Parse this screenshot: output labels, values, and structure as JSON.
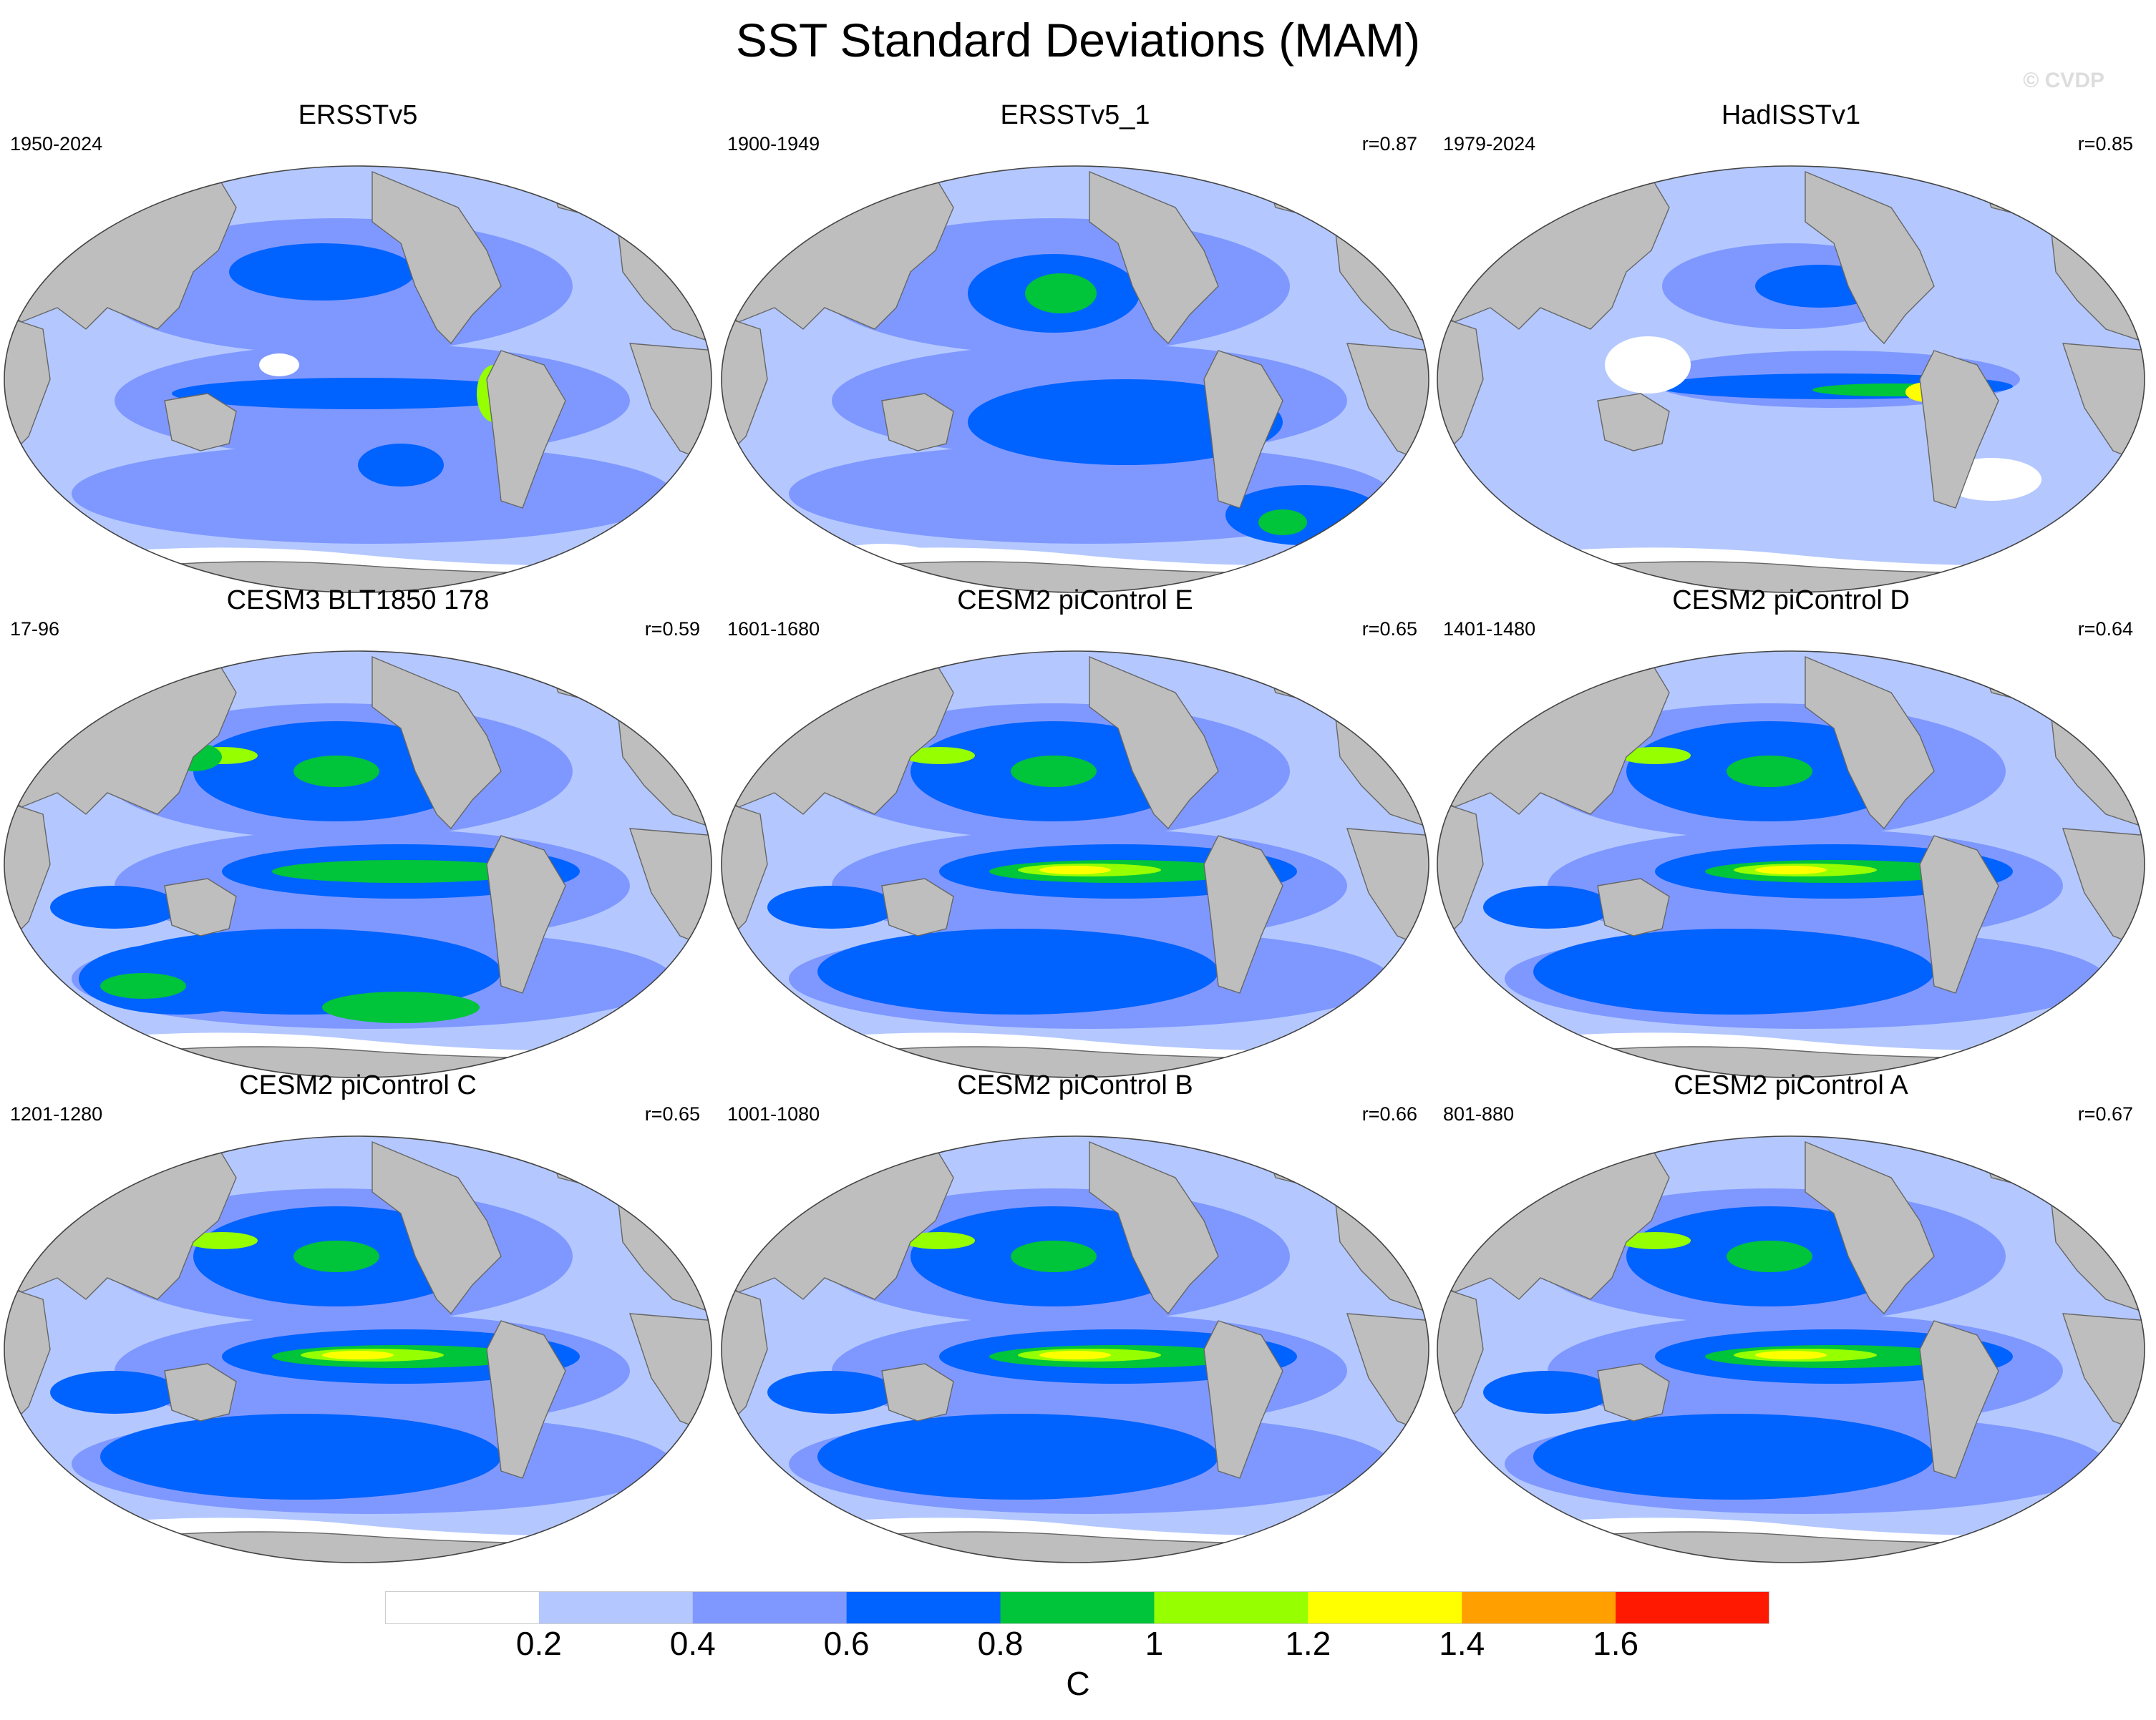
{
  "title": "SST Standard Deviations (MAM)",
  "watermark": "© CVDP",
  "colors": {
    "land": "#bebebe",
    "coast": "#555555",
    "ocean_bins": [
      "#ffffff",
      "#b4c8ff",
      "#7f98ff",
      "#0062ff",
      "#00c43a",
      "#96ff00",
      "#ffff00",
      "#ff9f00",
      "#ff1900"
    ]
  },
  "chart_data": [
    {
      "type": "heatmap",
      "title": "ERSSTv5",
      "period": "1950-2024",
      "r": "",
      "projection": "robinson"
    },
    {
      "type": "heatmap",
      "title": "ERSSTv5_1",
      "period": "1900-1949",
      "r": "r=0.87",
      "projection": "robinson"
    },
    {
      "type": "heatmap",
      "title": "HadISSTv1",
      "period": "1979-2024",
      "r": "r=0.85",
      "projection": "robinson"
    },
    {
      "type": "heatmap",
      "title": "CESM3 BLT1850 178",
      "period": "17-96",
      "r": "r=0.59",
      "projection": "robinson"
    },
    {
      "type": "heatmap",
      "title": "CESM2 piControl E",
      "period": "1601-1680",
      "r": "r=0.65",
      "projection": "robinson"
    },
    {
      "type": "heatmap",
      "title": "CESM2 piControl D",
      "period": "1401-1480",
      "r": "r=0.64",
      "projection": "robinson"
    },
    {
      "type": "heatmap",
      "title": "CESM2 piControl C",
      "period": "1201-1280",
      "r": "r=0.65",
      "projection": "robinson"
    },
    {
      "type": "heatmap",
      "title": "CESM2 piControl B",
      "period": "1001-1080",
      "r": "r=0.66",
      "projection": "robinson"
    },
    {
      "type": "heatmap",
      "title": "CESM2 piControl A",
      "period": "801-880",
      "r": "r=0.67",
      "projection": "robinson"
    }
  ],
  "colorbar": {
    "levels": [
      0.2,
      0.4,
      0.6,
      0.8,
      1.0,
      1.2,
      1.4,
      1.6
    ],
    "tick_labels": [
      "0.2",
      "0.4",
      "0.6",
      "0.8",
      "1",
      "1.2",
      "1.4",
      "1.6"
    ],
    "units": "C"
  }
}
